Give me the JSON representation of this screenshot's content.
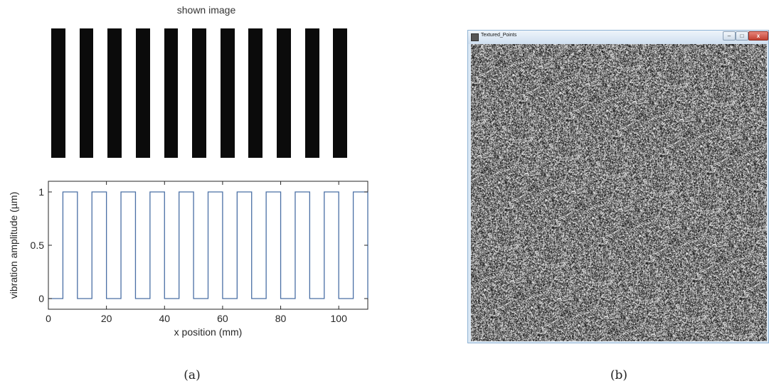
{
  "panel_a": {
    "shown_image_title": "shown image",
    "caption": "(a)",
    "chart_data": {
      "type": "line",
      "title": "",
      "xlabel": "x position (mm)",
      "ylabel": "vibration amplitude (µm)",
      "xlim": [
        0,
        110
      ],
      "ylim": [
        -0.1,
        1.1
      ],
      "xticks": [
        "0",
        "20",
        "40",
        "60",
        "80",
        "100"
      ],
      "yticks": [
        "0",
        "0.5",
        "1"
      ],
      "grid": false,
      "series_color": "#4a6fa5",
      "x": [
        0,
        5,
        5,
        10,
        10,
        15,
        15,
        20,
        20,
        25,
        25,
        30,
        30,
        35,
        35,
        40,
        40,
        45,
        45,
        50,
        50,
        55,
        55,
        60,
        60,
        65,
        65,
        70,
        70,
        75,
        75,
        80,
        80,
        85,
        85,
        90,
        90,
        95,
        95,
        100,
        100,
        105,
        105,
        110,
        110
      ],
      "y": [
        0,
        0,
        1,
        1,
        0,
        0,
        1,
        1,
        0,
        0,
        1,
        1,
        0,
        0,
        1,
        1,
        0,
        0,
        1,
        1,
        0,
        0,
        1,
        1,
        0,
        0,
        1,
        1,
        0,
        0,
        1,
        1,
        0,
        0,
        1,
        1,
        0,
        0,
        1,
        1,
        0,
        0,
        1,
        1,
        0
      ]
    }
  },
  "panel_b": {
    "window_title": "Textured_Points",
    "minimize_glyph": "–",
    "maximize_glyph": "□",
    "close_glyph": "x",
    "caption": "(b)"
  }
}
